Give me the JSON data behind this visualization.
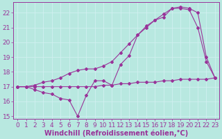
{
  "background_color": "#b8e8e0",
  "grid_color": "#d0f0f0",
  "line_color": "#993399",
  "xlim": [
    -0.5,
    23.5
  ],
  "ylim": [
    14.8,
    22.7
  ],
  "xlabel": "Windchill (Refroidissement éolien,°C)",
  "xlabel_fontsize": 7,
  "xticks": [
    0,
    1,
    2,
    3,
    4,
    5,
    6,
    7,
    8,
    9,
    10,
    11,
    12,
    13,
    14,
    15,
    16,
    17,
    18,
    19,
    20,
    21,
    22,
    23
  ],
  "yticks": [
    15,
    16,
    17,
    18,
    19,
    20,
    21,
    22
  ],
  "tick_fontsize": 6.5,
  "line1_x": [
    0,
    1,
    2,
    3,
    4,
    5,
    6,
    7,
    8,
    9,
    10,
    11,
    12,
    13,
    14,
    15,
    16,
    17,
    18,
    19,
    20,
    21,
    22,
    23
  ],
  "line1_y": [
    17.0,
    17.0,
    17.0,
    17.0,
    17.0,
    17.0,
    17.0,
    17.0,
    17.0,
    17.0,
    17.1,
    17.1,
    17.2,
    17.2,
    17.3,
    17.3,
    17.3,
    17.4,
    17.4,
    17.5,
    17.5,
    17.5,
    17.5,
    17.6
  ],
  "line2_x": [
    0,
    1,
    2,
    3,
    4,
    5,
    6,
    7,
    8,
    9,
    10,
    11,
    12,
    13,
    14,
    15,
    16,
    17,
    18,
    19,
    20,
    21,
    22,
    23
  ],
  "line2_y": [
    17.0,
    17.0,
    16.8,
    16.6,
    16.5,
    16.2,
    16.1,
    15.0,
    16.4,
    17.4,
    17.4,
    17.1,
    18.5,
    19.1,
    20.5,
    21.0,
    21.5,
    21.7,
    22.3,
    22.3,
    22.2,
    21.0,
    18.7,
    17.6
  ],
  "line3_x": [
    0,
    1,
    2,
    3,
    4,
    5,
    6,
    7,
    8,
    9,
    10,
    11,
    12,
    13,
    14,
    15,
    16,
    17,
    18,
    19,
    20,
    21,
    22,
    23
  ],
  "line3_y": [
    17.0,
    17.0,
    17.1,
    17.3,
    17.4,
    17.6,
    17.9,
    18.1,
    18.2,
    18.2,
    18.4,
    18.7,
    19.3,
    19.9,
    20.5,
    21.1,
    21.5,
    21.9,
    22.3,
    22.4,
    22.3,
    22.0,
    19.0,
    17.6
  ]
}
